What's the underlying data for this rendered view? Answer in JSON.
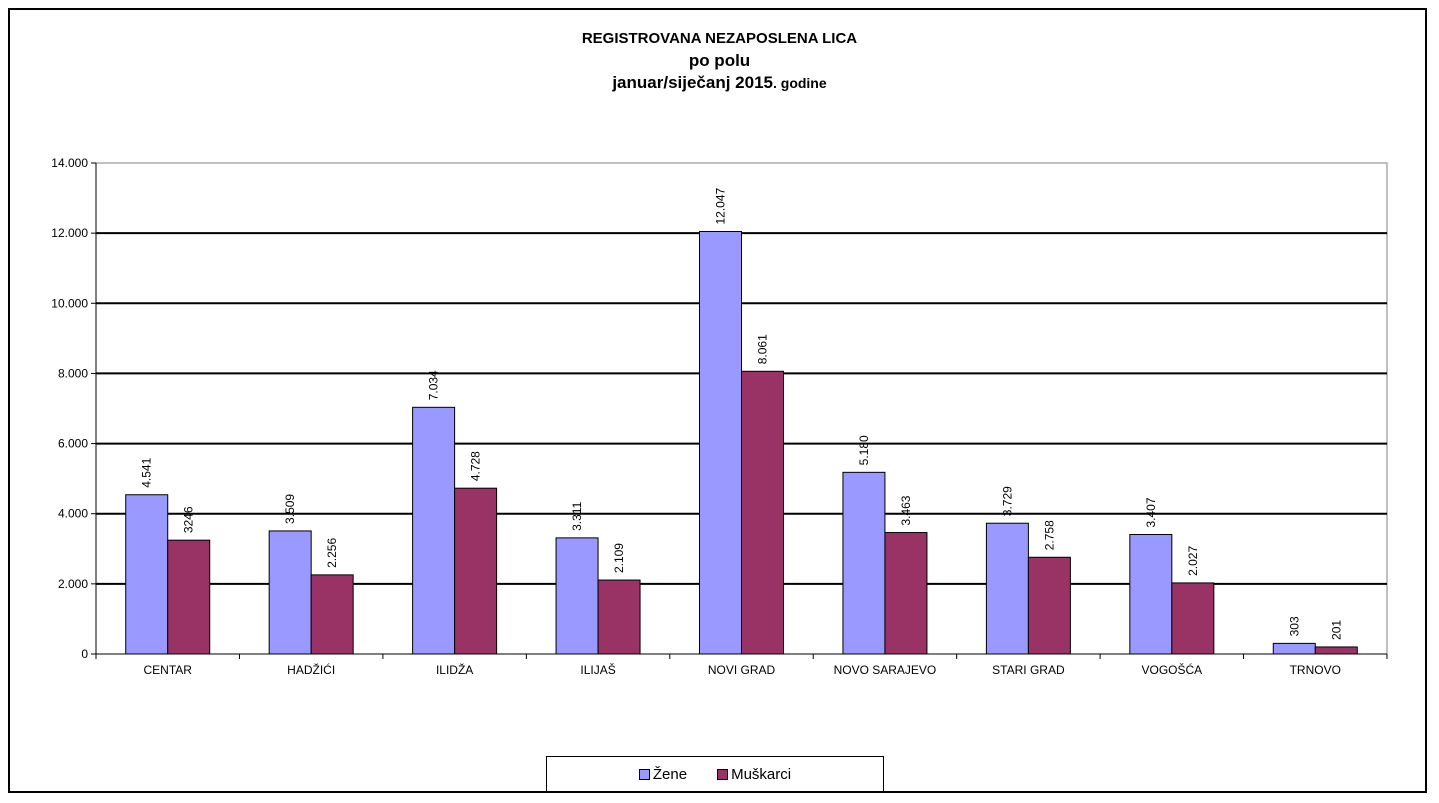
{
  "chart_data": {
    "type": "bar",
    "title": "REGISTROVANA NEZAPOSLENA LICA",
    "subtitle": "po polu",
    "period_main": "januar/siječanj 2015",
    "period_suffix": ". godine",
    "categories": [
      "CENTAR",
      "HADŽIĆI",
      "ILIDŽA",
      "ILIJAŠ",
      "NOVI GRAD",
      "NOVO SARAJEVO",
      "STARI GRAD",
      "VOGOŠĆA",
      "TRNOVO"
    ],
    "series": [
      {
        "name": "Žene",
        "color": "#9999ff",
        "values": [
          4541,
          3509,
          7034,
          3311,
          12047,
          5180,
          3729,
          3407,
          303
        ],
        "labels": [
          "4.541",
          "3.509",
          "7.034",
          "3.311",
          "12.047",
          "5.180",
          "3.729",
          "3.407",
          "303"
        ]
      },
      {
        "name": "Muškarci",
        "color": "#993366",
        "values": [
          3246,
          2256,
          4728,
          2109,
          8061,
          3463,
          2758,
          2027,
          201
        ],
        "labels": [
          "3246",
          "2.256",
          "4.728",
          "2.109",
          "8.061",
          "3.463",
          "2.758",
          "2.027",
          "201"
        ]
      }
    ],
    "ylim": [
      0,
      14000
    ],
    "yticks": [
      0,
      2000,
      4000,
      6000,
      8000,
      10000,
      12000,
      14000
    ],
    "ytick_labels": [
      "0",
      "2.000",
      "4.000",
      "6.000",
      "8.000",
      "10.000",
      "12.000",
      "14.000"
    ],
    "grid": true,
    "legend_position": "bottom"
  }
}
